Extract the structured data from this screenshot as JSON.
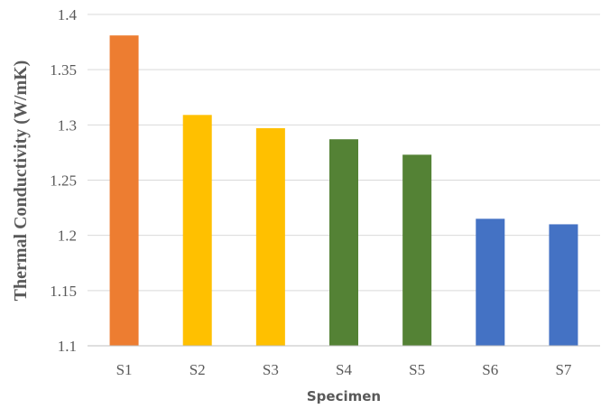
{
  "chart_data": {
    "type": "bar",
    "title": "",
    "xlabel": "Specimen",
    "ylabel": "Thermal Conductivity (W/mK)",
    "ylim": [
      1.1,
      1.4
    ],
    "yticks": [
      "1.1",
      "1.15",
      "1.2",
      "1.25",
      "1.3",
      "1.35",
      "1.4"
    ],
    "grid": true,
    "legend": "none",
    "categories": [
      "S1",
      "S2",
      "S3",
      "S4",
      "S5",
      "S6",
      "S7"
    ],
    "values": [
      1.381,
      1.309,
      1.297,
      1.287,
      1.273,
      1.215,
      1.21
    ],
    "bar_colors": [
      "#ED7D31",
      "#FFC000",
      "#FFC000",
      "#548235",
      "#548235",
      "#4472C4",
      "#4472C4"
    ],
    "gridline_color": "#d9d9d9",
    "axis_color": "#bfbfbf"
  }
}
